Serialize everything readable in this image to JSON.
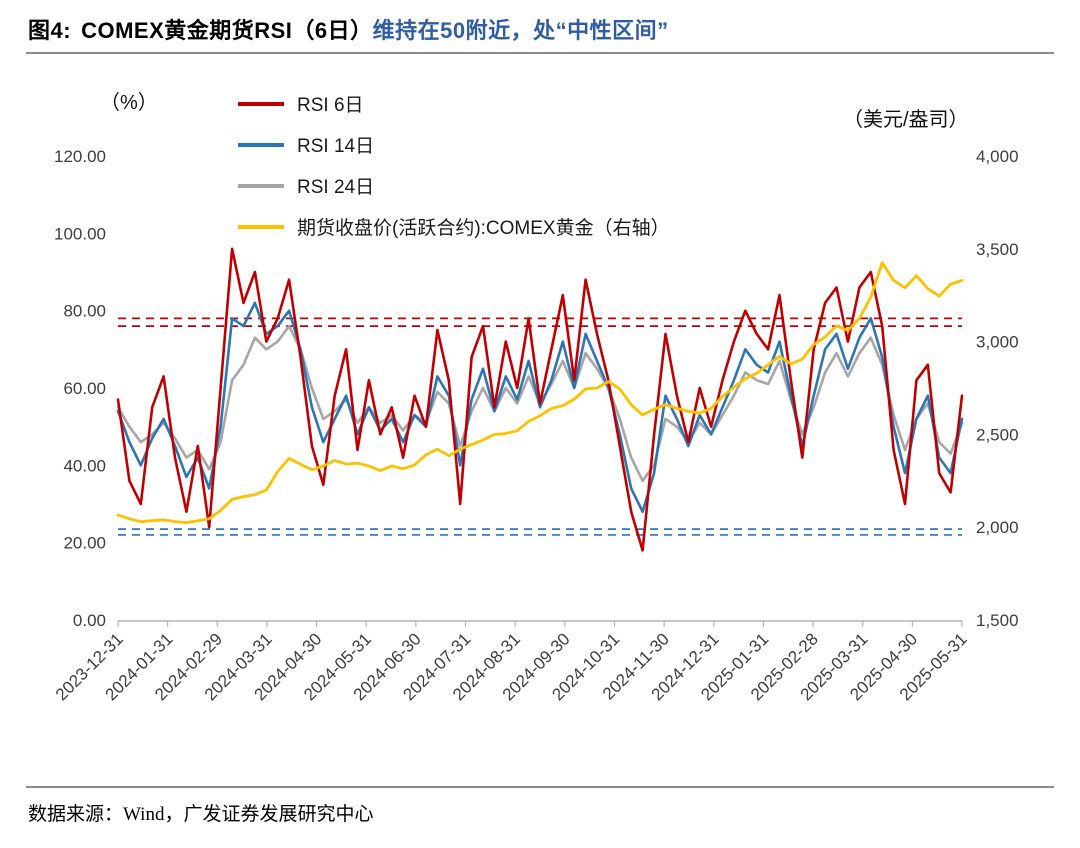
{
  "header": {
    "figure_label": "图4:",
    "title_main": "COMEX黄金期货RSI（6日）",
    "title_highlight": "维持在50附近，处“中性区间”",
    "highlight_color": "#2E5CA5"
  },
  "footer": {
    "source": "数据来源：Wind，广发证券发展研究中心"
  },
  "chart_data": {
    "type": "line",
    "title": "COMEX黄金期货RSI（6日）维持在50附近，处“中性区间”",
    "left_axis": {
      "unit": "（%）",
      "min": 0,
      "max": 120,
      "ticks": [
        "0.00",
        "20.00",
        "40.00",
        "60.00",
        "80.00",
        "100.00",
        "120.00"
      ]
    },
    "right_axis": {
      "unit": "（美元/盎司）",
      "min": 1500,
      "max": 4000,
      "ticks": [
        "1,500",
        "2,000",
        "2,500",
        "3,000",
        "3,500",
        "4,000"
      ]
    },
    "x_ticks": [
      "2023-12-31",
      "2024-01-31",
      "2024-02-29",
      "2024-03-31",
      "2024-04-30",
      "2024-05-31",
      "2024-06-30",
      "2024-07-31",
      "2024-08-31",
      "2024-09-30",
      "2024-10-31",
      "2024-11-30",
      "2024-12-31",
      "2025-01-31",
      "2025-02-28",
      "2025-03-31",
      "2025-04-30",
      "2025-05-31"
    ],
    "grid": false,
    "legend_position": "top-left",
    "reference_lines": [
      {
        "axis": "left",
        "value": 78,
        "color": "#C00000",
        "style": "dashed"
      },
      {
        "axis": "left",
        "value": 76,
        "color": "#C00000",
        "style": "dashed"
      },
      {
        "axis": "left",
        "value": 23.5,
        "color": "#2E75B6",
        "style": "dashed"
      },
      {
        "axis": "left",
        "value": 22,
        "color": "#2E75B6",
        "style": "dashed"
      }
    ],
    "series": [
      {
        "name": "RSI 6日",
        "color": "#C00000",
        "axis": "left",
        "width": 2.6,
        "values": [
          57,
          36,
          30,
          55,
          63,
          42,
          28,
          45,
          24,
          60,
          96,
          82,
          90,
          72,
          78,
          88,
          68,
          45,
          35,
          58,
          70,
          44,
          62,
          48,
          55,
          42,
          58,
          50,
          75,
          62,
          30,
          68,
          76,
          55,
          72,
          60,
          78,
          56,
          70,
          84,
          62,
          88,
          74,
          62,
          45,
          28,
          18,
          48,
          74,
          58,
          46,
          60,
          50,
          62,
          72,
          80,
          74,
          70,
          84,
          62,
          42,
          70,
          82,
          86,
          72,
          86,
          90,
          76,
          44,
          30,
          62,
          66,
          38,
          33,
          58
        ]
      },
      {
        "name": "RSI 14日",
        "color": "#2E75B6",
        "axis": "left",
        "width": 2.6,
        "values": [
          54,
          46,
          40,
          47,
          52,
          45,
          37,
          42,
          34,
          50,
          78,
          76,
          82,
          74,
          76,
          80,
          70,
          55,
          46,
          52,
          58,
          48,
          55,
          49,
          52,
          46,
          53,
          50,
          63,
          58,
          40,
          57,
          65,
          54,
          63,
          57,
          67,
          55,
          62,
          72,
          60,
          74,
          67,
          60,
          48,
          34,
          28,
          38,
          58,
          52,
          45,
          53,
          48,
          55,
          62,
          70,
          66,
          64,
          72,
          58,
          45,
          58,
          70,
          74,
          65,
          73,
          78,
          68,
          50,
          38,
          52,
          58,
          42,
          38,
          52
        ]
      },
      {
        "name": "RSI 24日",
        "color": "#A6A6A6",
        "axis": "left",
        "width": 2.6,
        "values": [
          55,
          50,
          46,
          48,
          51,
          47,
          42,
          44,
          39,
          46,
          62,
          66,
          73,
          70,
          72,
          76,
          70,
          60,
          52,
          54,
          57,
          51,
          55,
          51,
          53,
          49,
          53,
          51,
          59,
          56,
          45,
          54,
          60,
          54,
          60,
          56,
          63,
          56,
          61,
          67,
          60,
          69,
          65,
          60,
          52,
          42,
          36,
          40,
          52,
          50,
          46,
          51,
          48,
          53,
          58,
          64,
          62,
          61,
          67,
          57,
          48,
          55,
          64,
          69,
          63,
          69,
          73,
          66,
          53,
          44,
          52,
          56,
          46,
          43,
          51
        ]
      },
      {
        "name": "期货收盘价(活跃合约):COMEX黄金（右轴）",
        "color": "#FFC000",
        "axis": "right",
        "width": 2.8,
        "values": [
          2065,
          2045,
          2030,
          2035,
          2040,
          2030,
          2025,
          2035,
          2045,
          2090,
          2150,
          2165,
          2175,
          2200,
          2300,
          2370,
          2340,
          2310,
          2330,
          2360,
          2340,
          2345,
          2330,
          2305,
          2330,
          2315,
          2335,
          2390,
          2420,
          2385,
          2420,
          2445,
          2470,
          2500,
          2505,
          2520,
          2570,
          2600,
          2640,
          2655,
          2690,
          2745,
          2750,
          2785,
          2745,
          2660,
          2605,
          2635,
          2660,
          2640,
          2625,
          2615,
          2640,
          2705,
          2755,
          2800,
          2830,
          2875,
          2920,
          2880,
          2905,
          2985,
          3025,
          3085,
          3060,
          3125,
          3240,
          3425,
          3330,
          3290,
          3355,
          3285,
          3245,
          3310,
          3330
        ]
      }
    ]
  }
}
